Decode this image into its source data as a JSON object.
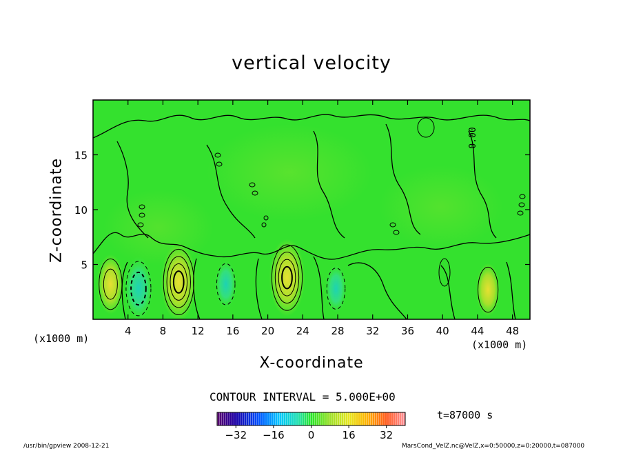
{
  "chart_data": {
    "type": "heatmap",
    "title": "vertical velocity",
    "xlabel": "X-coordinate",
    "ylabel": "Z-coordinate",
    "x_unit_left": "(x1000 m)",
    "x_unit_right": "(x1000 m)",
    "xlim": [
      0,
      50
    ],
    "ylim": [
      0,
      20
    ],
    "x_ticks": [
      4,
      8,
      12,
      16,
      20,
      24,
      28,
      32,
      36,
      40,
      44,
      48
    ],
    "y_ticks": [
      5,
      10,
      15
    ],
    "contour_interval_label": "CONTOUR INTERVAL = 5.000E+00",
    "contour_label": "0.00",
    "colorbar": {
      "range": [
        -40,
        40
      ],
      "ticks": [
        -32,
        -16,
        0,
        16,
        32
      ],
      "colors": [
        "#5a006e",
        "#1a00a8",
        "#0050ff",
        "#00c8ff",
        "#22e0b0",
        "#28e628",
        "#9ce02a",
        "#e8e820",
        "#ffb000",
        "#ff5a1e",
        "#ff96a0"
      ]
    },
    "time_label": "t=87000 s",
    "features": [
      {
        "x": 2.0,
        "z": 3.2,
        "type": "updraft",
        "peak": 12
      },
      {
        "x": 5.2,
        "z": 2.8,
        "type": "downdraft",
        "peak": -14
      },
      {
        "x": 9.8,
        "z": 3.4,
        "type": "updraft",
        "peak": 20
      },
      {
        "x": 15.2,
        "z": 3.2,
        "type": "downdraft",
        "peak": -7
      },
      {
        "x": 22.2,
        "z": 3.8,
        "type": "updraft",
        "peak": 20
      },
      {
        "x": 27.8,
        "z": 2.8,
        "type": "downdraft",
        "peak": -7
      },
      {
        "x": 45.2,
        "z": 2.7,
        "type": "updraft",
        "peak": 9
      }
    ]
  },
  "footer": {
    "left": "/usr/bin/gpview   2008-12-21",
    "right": "MarsCond_VelZ.nc@VelZ,x=0:50000,z=0:20000,t=087000"
  }
}
